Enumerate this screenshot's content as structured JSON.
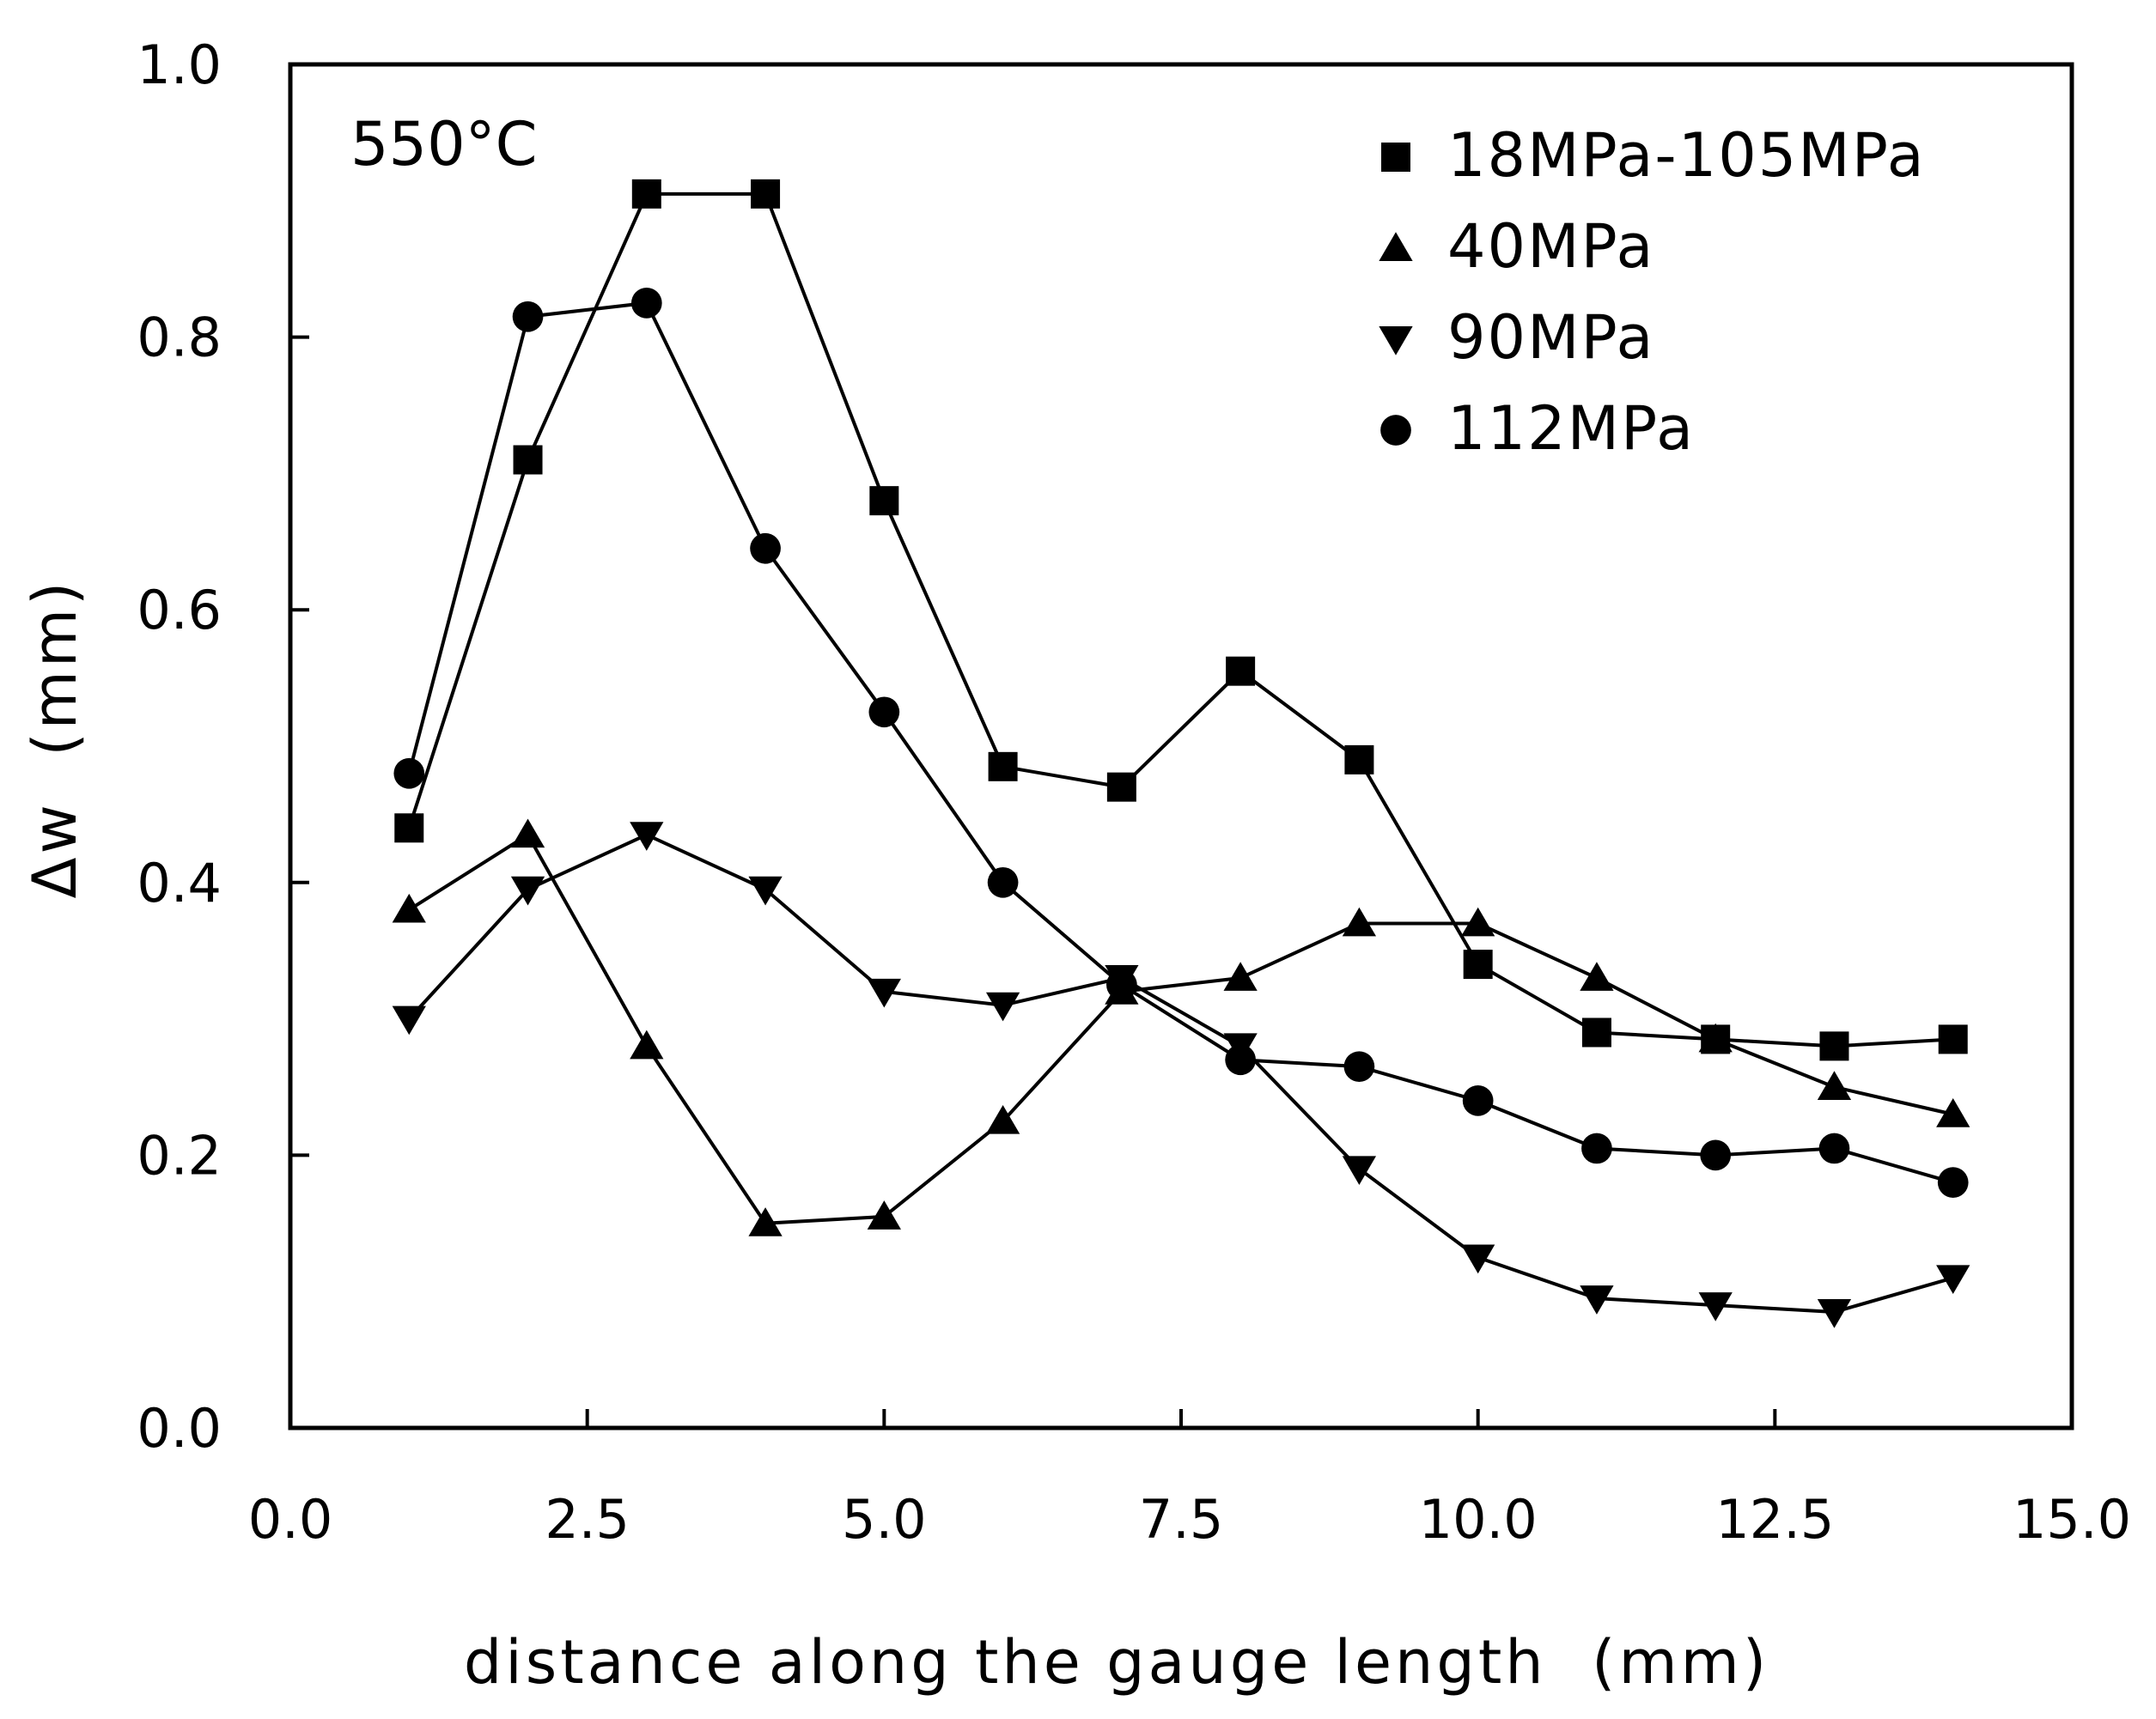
{
  "chart_data": {
    "type": "line",
    "title": "",
    "annotation": "550°C",
    "xlabel": "distance along the gauge length  (mm)",
    "ylabel": "Δw  (mm)",
    "xlim": [
      0,
      15
    ],
    "ylim": [
      0,
      1
    ],
    "xticks": [
      "0.0",
      "2.5",
      "5.0",
      "7.5",
      "10.0",
      "12.5",
      "15.0"
    ],
    "yticks": [
      "0.0",
      "0.2",
      "0.4",
      "0.6",
      "0.8",
      "1.0"
    ],
    "xtick_values": [
      0,
      2.5,
      5,
      7.5,
      10,
      12.5,
      15
    ],
    "ytick_values": [
      0,
      0.2,
      0.4,
      0.6,
      0.8,
      1.0
    ],
    "grid": false,
    "legend_position": "top-right",
    "x": [
      1,
      2,
      3,
      4,
      5,
      6,
      7,
      8,
      9,
      10,
      11,
      12,
      13,
      14
    ],
    "series": [
      {
        "name": "18MPa-105MPa",
        "marker": "square",
        "values": [
          0.44,
          0.71,
          0.905,
          0.905,
          0.68,
          0.485,
          0.47,
          0.555,
          0.49,
          0.34,
          0.29,
          0.285,
          0.28,
          0.285
        ]
      },
      {
        "name": "40MPa",
        "marker": "triangle-up",
        "values": [
          0.38,
          0.435,
          0.28,
          0.15,
          0.155,
          0.225,
          0.32,
          0.33,
          0.37,
          0.37,
          0.33,
          0.285,
          0.25,
          0.23
        ]
      },
      {
        "name": "90MPa",
        "marker": "triangle-down",
        "values": [
          0.3,
          0.395,
          0.435,
          0.395,
          0.32,
          0.31,
          0.33,
          0.28,
          0.19,
          0.125,
          0.095,
          0.09,
          0.085,
          0.11
        ]
      },
      {
        "name": "112MPa",
        "marker": "circle",
        "values": [
          0.48,
          0.815,
          0.825,
          0.645,
          0.525,
          0.4,
          0.325,
          0.27,
          0.265,
          0.24,
          0.205,
          0.2,
          0.205,
          0.18
        ]
      }
    ]
  }
}
